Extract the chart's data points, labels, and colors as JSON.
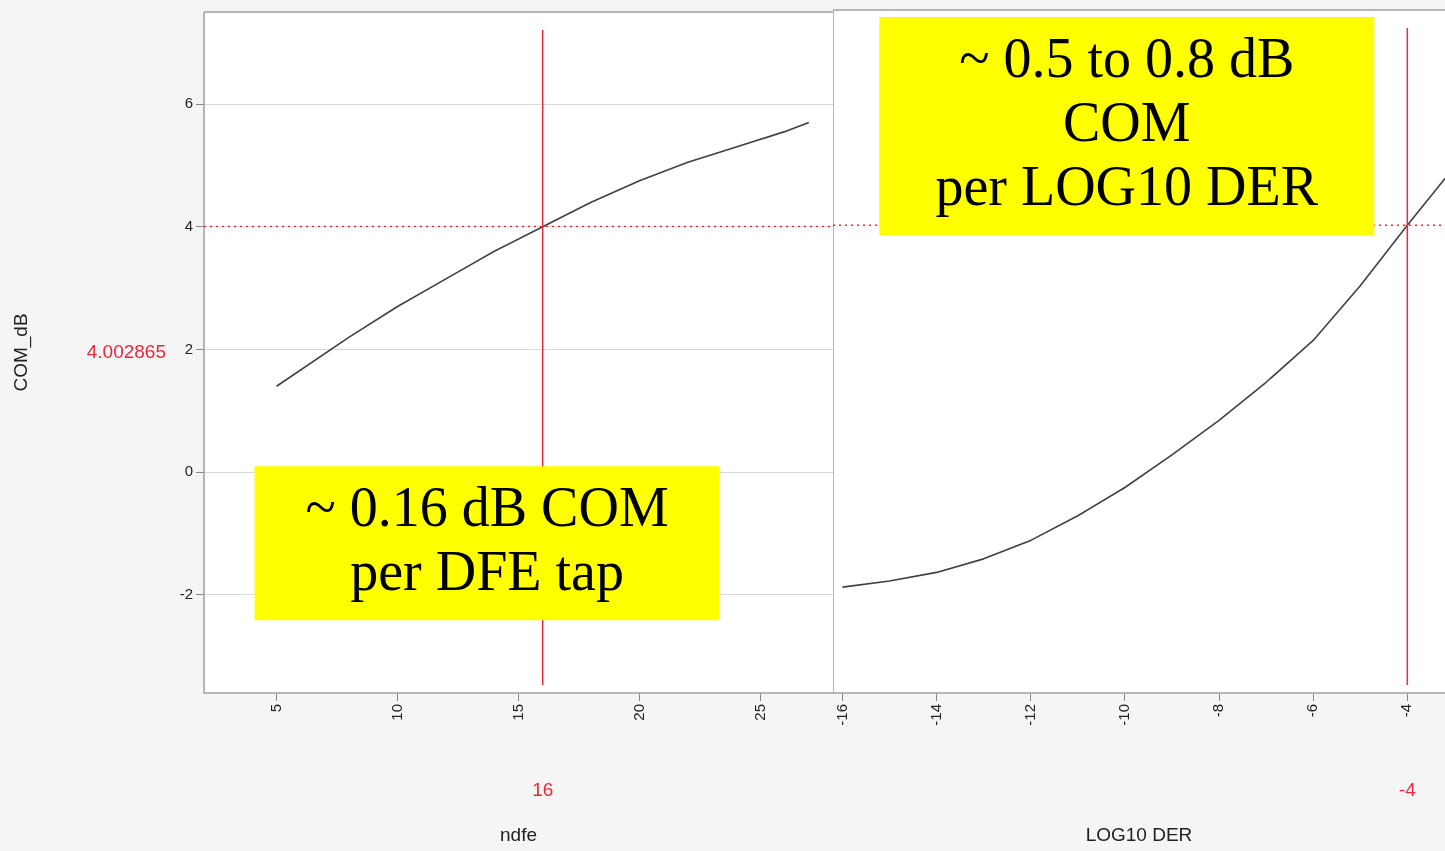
{
  "chart_data": [
    {
      "type": "line",
      "xlabel": "ndfe",
      "ylabel": "COM_dB",
      "xlim": [
        2,
        28
      ],
      "xticks": [
        5,
        10,
        15,
        20,
        25
      ],
      "ylim": [
        -3.6,
        7.5
      ],
      "yticks": [
        -2,
        0,
        2,
        4,
        6
      ],
      "grid": "y",
      "legend": false,
      "marker": "none",
      "line_style": "solid",
      "series": [
        {
          "color": "#404040",
          "x": [
            5,
            8,
            10,
            12,
            14,
            16,
            18,
            20,
            22,
            24,
            26,
            27
          ],
          "values": [
            1.4,
            2.2,
            2.7,
            3.15,
            3.6,
            4.0,
            4.4,
            4.75,
            5.05,
            5.3,
            5.55,
            5.7
          ]
        }
      ],
      "ref_lines": [
        {
          "axis": "x",
          "value": 16,
          "label": "16",
          "color": "#e8283c",
          "line_style": "solid"
        },
        {
          "axis": "y",
          "value": 4.002865,
          "label": "4.002865",
          "color": "#e8283c",
          "line_style": "dotted"
        }
      ],
      "annotations": [
        "~ 0.16 dB COM\nper DFE tap"
      ]
    },
    {
      "type": "line",
      "xlabel": "LOG10 DER",
      "xlim": [
        -16.2,
        -3.2
      ],
      "xticks": [
        -16,
        -14,
        -12,
        -10,
        -8,
        -6,
        -4
      ],
      "ylim": [
        -3.6,
        7.5
      ],
      "yticks": [
        -2,
        0,
        2,
        4,
        6
      ],
      "tick_labels": "x",
      "grid": "y",
      "legend": false,
      "marker": "none",
      "line_style": "solid",
      "series": [
        {
          "color": "#404040",
          "x": [
            -16,
            -15,
            -14,
            -13,
            -12,
            -11,
            -10,
            -9,
            -8,
            -7,
            -6,
            -5,
            -4,
            -3.2
          ],
          "values": [
            -1.88,
            -1.78,
            -1.64,
            -1.42,
            -1.12,
            -0.72,
            -0.26,
            0.27,
            0.83,
            1.45,
            2.13,
            3.02,
            4.0,
            4.76
          ]
        }
      ],
      "ref_lines": [
        {
          "axis": "x",
          "value": -4,
          "label": "-4",
          "color": "#e8283c",
          "line_style": "solid"
        },
        {
          "axis": "y",
          "value": 4.002865,
          "color": "#e8283c",
          "line_style": "dotted"
        }
      ],
      "annotations": [
        "~ 0.5 to 0.8 dB\nCOM\nper LOG10 DER"
      ]
    }
  ]
}
